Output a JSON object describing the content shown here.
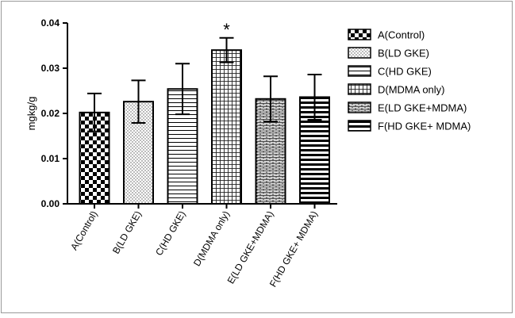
{
  "chart_data": {
    "type": "bar",
    "ylabel": "mgkg/g",
    "ylim": [
      0,
      0.04
    ],
    "yticks": [
      "0.00",
      "0.01",
      "0.02",
      "0.03",
      "0.04"
    ],
    "categories": [
      "A(Control)",
      "B(LD GKE)",
      "C(HD GKE)",
      "D(MDMA only)",
      "E(LD GKE+MDMA)",
      "F(HD GKE+ MDMA)"
    ],
    "values": [
      0.0202,
      0.0226,
      0.0254,
      0.034,
      0.0232,
      0.0236
    ],
    "errors": [
      0.0042,
      0.0047,
      0.0056,
      0.0027,
      0.005,
      0.005
    ],
    "patterns": [
      "checker",
      "dots",
      "hlines",
      "grid",
      "brick",
      "hbars"
    ],
    "legend": [
      "A(Control)",
      "B(LD GKE)",
      "C(HD GKE)",
      "D(MDMA only)",
      "E(LD GKE+MDMA)",
      "F(HD GKE+ MDMA)"
    ],
    "legend_position": "right",
    "annotations": [
      {
        "category": "D(MDMA only)",
        "text": "*"
      }
    ],
    "grid": false
  }
}
